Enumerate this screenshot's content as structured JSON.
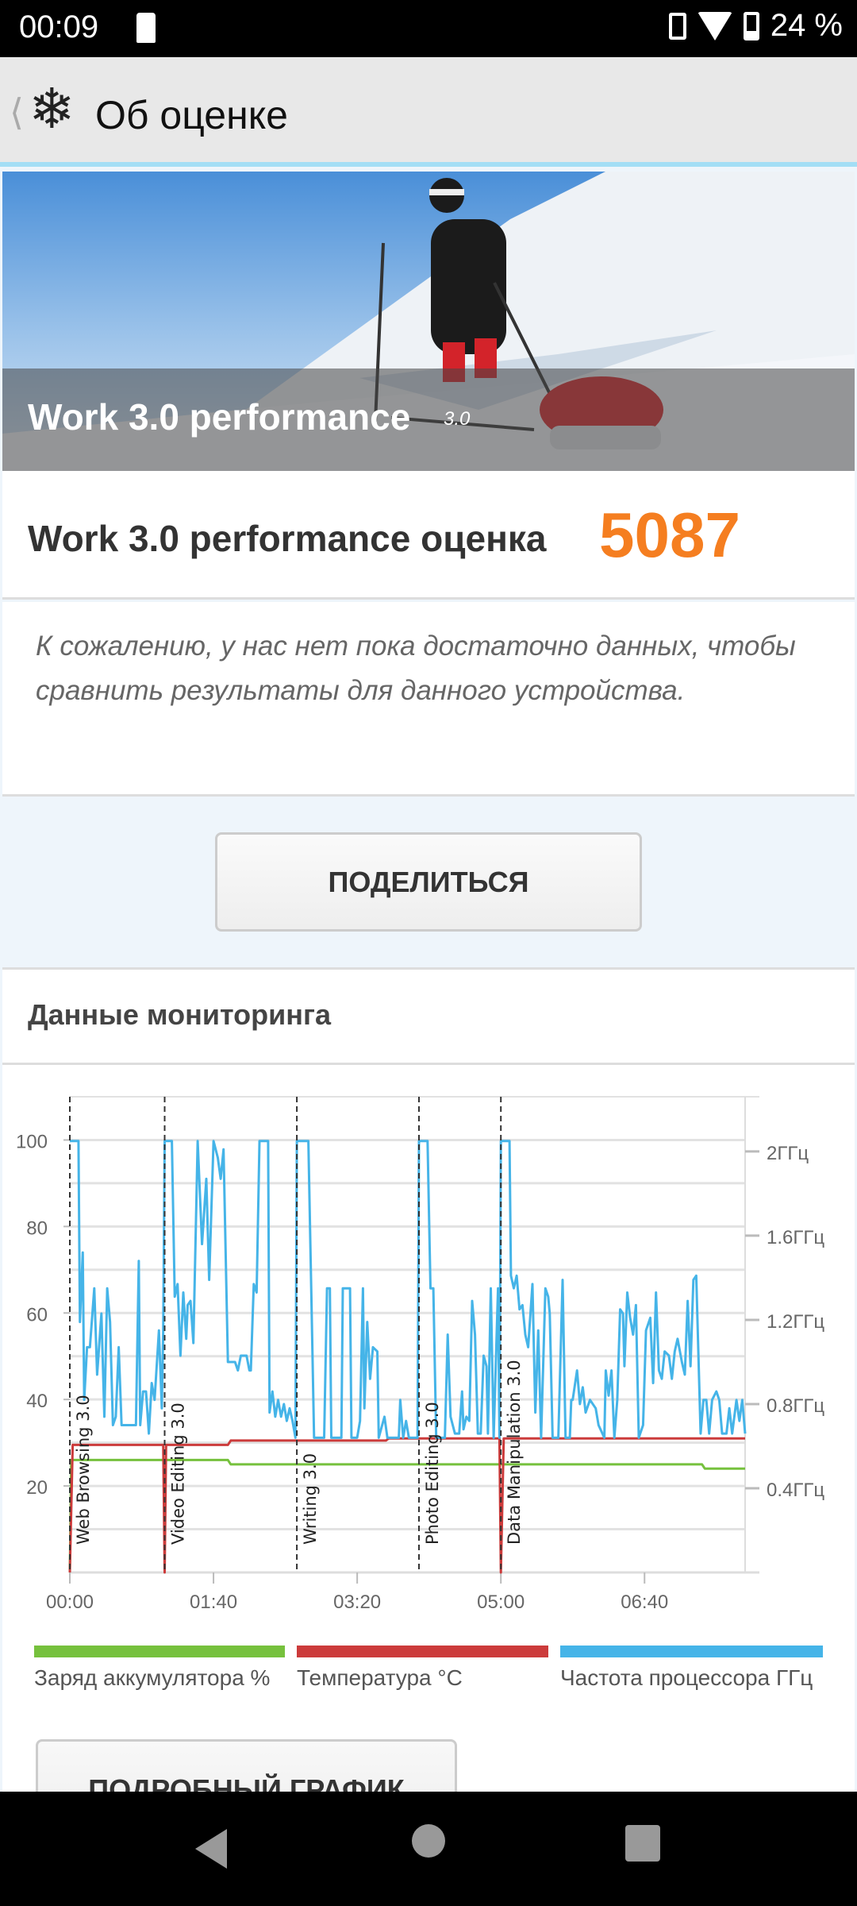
{
  "status_bar": {
    "time": "00:09",
    "battery": "24 %",
    "icons": [
      "sim-card-icon",
      "vibrate-icon",
      "wifi-icon",
      "battery-icon"
    ]
  },
  "app_bar": {
    "back_icon": "chevron-left-icon",
    "logo_icon": "snowflake-icon",
    "title": "Об оценке"
  },
  "hero": {
    "title": "Work 3.0 performance",
    "version": "3.0"
  },
  "score": {
    "label": "Work 3.0 performance оценка",
    "value": "5087",
    "color": "#f57e20"
  },
  "note": "К сожалению, у нас нет пока достаточно данных, чтобы сравнить результаты для данного устройства.",
  "share_button": "ПОДЕЛИТЬСЯ",
  "monitoring": {
    "title": "Данные мониторинга",
    "detail_button": "ПОДРОБНЫЙ ГРАФИК"
  },
  "chart_data": {
    "type": "line",
    "x_unit": "seconds",
    "xlim": [
      0,
      470
    ],
    "x_ticks": [
      {
        "value": 0,
        "label": "00:00"
      },
      {
        "value": 100,
        "label": "01:40"
      },
      {
        "value": 200,
        "label": "03:20"
      },
      {
        "value": 300,
        "label": "05:00"
      },
      {
        "value": 400,
        "label": "06:40"
      }
    ],
    "ylim_left": [
      0,
      110
    ],
    "y_ticks_left": [
      20,
      40,
      60,
      80,
      100
    ],
    "ylim_right": [
      0,
      2.26
    ],
    "y_ticks_right": [
      {
        "value": 0.4,
        "label": "0.4ГГц"
      },
      {
        "value": 0.8,
        "label": "0.8ГГц"
      },
      {
        "value": 1.2,
        "label": "1.2ГГц"
      },
      {
        "value": 1.6,
        "label": "1.6ГГц"
      },
      {
        "value": 2.0,
        "label": "2ГГц"
      }
    ],
    "grid": true,
    "legend_position": "bottom",
    "markers": [
      {
        "t": 0,
        "label": "Web Browsing 3.0"
      },
      {
        "t": 66,
        "label": "Video Editing 3.0"
      },
      {
        "t": 158,
        "label": "Writing 3.0"
      },
      {
        "t": 243,
        "label": "Photo Editing 3.0"
      },
      {
        "t": 300,
        "label": "Data Manipulation 3.0"
      }
    ],
    "series": [
      {
        "name": "Заряд аккумулятора %",
        "axis": "left",
        "color": "#76c13d",
        "points": [
          [
            0,
            0
          ],
          [
            1,
            26
          ],
          [
            110,
            26
          ],
          [
            112,
            25
          ],
          [
            440,
            25
          ],
          [
            442,
            24
          ],
          [
            470,
            24
          ]
        ]
      },
      {
        "name": "Температура °C",
        "axis": "left",
        "color": "#cc3b3b",
        "points": [
          [
            0,
            0
          ],
          [
            2,
            29.5
          ],
          [
            65,
            29.5
          ],
          [
            66,
            0
          ],
          [
            67,
            29.5
          ],
          [
            110,
            29.5
          ],
          [
            112,
            30.5
          ],
          [
            220,
            30.5
          ],
          [
            222,
            31
          ],
          [
            299,
            31
          ],
          [
            300,
            0
          ],
          [
            302,
            31
          ],
          [
            445,
            31
          ],
          [
            470,
            31
          ]
        ]
      },
      {
        "name": "Частота процессора ГГц",
        "axis": "right",
        "color": "#45b4e8",
        "points": [
          [
            0,
            2.05
          ],
          [
            6,
            2.05
          ],
          [
            7,
            1.19
          ],
          [
            9,
            1.52
          ],
          [
            10,
            0.82
          ],
          [
            12,
            1.07
          ],
          [
            14,
            1.07
          ],
          [
            17,
            1.35
          ],
          [
            19,
            0.94
          ],
          [
            22,
            1.23
          ],
          [
            24,
            0.74
          ],
          [
            26,
            1.35
          ],
          [
            28,
            1.19
          ],
          [
            30,
            0.7
          ],
          [
            32,
            0.74
          ],
          [
            34,
            1.07
          ],
          [
            36,
            0.7
          ],
          [
            46,
            0.7
          ],
          [
            48,
            1.48
          ],
          [
            49,
            0.7
          ],
          [
            51,
            0.86
          ],
          [
            53,
            0.86
          ],
          [
            55,
            0.66
          ],
          [
            57,
            0.9
          ],
          [
            59,
            0.82
          ],
          [
            62,
            1.15
          ],
          [
            64,
            0.78
          ],
          [
            65,
            1.15
          ],
          [
            66,
            2.05
          ],
          [
            71,
            2.05
          ],
          [
            73,
            1.31
          ],
          [
            75,
            1.37
          ],
          [
            77,
            1.03
          ],
          [
            79,
            1.33
          ],
          [
            81,
            1.11
          ],
          [
            82,
            1.27
          ],
          [
            84,
            1.29
          ],
          [
            86,
            1.09
          ],
          [
            89,
            2.05
          ],
          [
            92,
            1.56
          ],
          [
            95,
            1.87
          ],
          [
            97,
            1.39
          ],
          [
            100,
            2.05
          ],
          [
            103,
            1.97
          ],
          [
            105,
            1.87
          ],
          [
            107,
            2.01
          ],
          [
            110,
            1.0
          ],
          [
            115,
            1.0
          ],
          [
            117,
            0.96
          ],
          [
            119,
            1.03
          ],
          [
            123,
            1.03
          ],
          [
            125,
            0.96
          ],
          [
            126,
            0.96
          ],
          [
            128,
            1.37
          ],
          [
            130,
            1.33
          ],
          [
            132,
            2.05
          ],
          [
            138,
            2.05
          ],
          [
            139,
            0.76
          ],
          [
            141,
            0.86
          ],
          [
            143,
            0.74
          ],
          [
            145,
            0.82
          ],
          [
            147,
            0.74
          ],
          [
            149,
            0.8
          ],
          [
            151,
            0.72
          ],
          [
            153,
            0.78
          ],
          [
            155,
            0.72
          ],
          [
            157,
            0.64
          ],
          [
            158,
            2.05
          ],
          [
            166,
            2.05
          ],
          [
            168,
            1.35
          ],
          [
            170,
            0.64
          ],
          [
            177,
            0.64
          ],
          [
            179,
            1.35
          ],
          [
            181,
            1.35
          ],
          [
            182,
            0.64
          ],
          [
            189,
            0.64
          ],
          [
            190,
            1.35
          ],
          [
            195,
            1.35
          ],
          [
            196,
            0.64
          ],
          [
            200,
            0.64
          ],
          [
            202,
            0.72
          ],
          [
            204,
            1.35
          ],
          [
            205,
            0.78
          ],
          [
            207,
            1.19
          ],
          [
            209,
            0.92
          ],
          [
            211,
            1.07
          ],
          [
            214,
            1.05
          ],
          [
            215,
            0.64
          ],
          [
            219,
            0.74
          ],
          [
            221,
            0.64
          ],
          [
            229,
            0.64
          ],
          [
            230,
            0.82
          ],
          [
            232,
            0.64
          ],
          [
            234,
            0.72
          ],
          [
            236,
            0.64
          ],
          [
            242,
            0.64
          ],
          [
            243,
            2.05
          ],
          [
            249,
            2.05
          ],
          [
            251,
            1.35
          ],
          [
            253,
            1.35
          ],
          [
            255,
            0.64
          ],
          [
            261,
            0.64
          ],
          [
            263,
            1.13
          ],
          [
            265,
            0.74
          ],
          [
            268,
            0.66
          ],
          [
            271,
            0.66
          ],
          [
            273,
            0.86
          ],
          [
            274,
            0.68
          ],
          [
            276,
            0.74
          ],
          [
            278,
            0.72
          ],
          [
            280,
            1.29
          ],
          [
            282,
            1.13
          ],
          [
            284,
            0.66
          ],
          [
            286,
            0.66
          ],
          [
            288,
            1.03
          ],
          [
            290,
            0.98
          ],
          [
            291,
            0.66
          ],
          [
            293,
            1.35
          ],
          [
            295,
            0.64
          ],
          [
            298,
            1.35
          ],
          [
            299,
            0.64
          ],
          [
            300,
            2.05
          ],
          [
            306,
            2.05
          ],
          [
            307,
            1.41
          ],
          [
            309,
            1.35
          ],
          [
            311,
            1.41
          ],
          [
            313,
            1.25
          ],
          [
            315,
            1.27
          ],
          [
            317,
            1.13
          ],
          [
            319,
            1.07
          ],
          [
            322,
            1.37
          ],
          [
            324,
            0.76
          ],
          [
            326,
            1.15
          ],
          [
            328,
            0.64
          ],
          [
            331,
            1.35
          ],
          [
            333,
            1.31
          ],
          [
            334,
            1.23
          ],
          [
            336,
            0.64
          ],
          [
            340,
            0.64
          ],
          [
            343,
            1.39
          ],
          [
            345,
            0.64
          ],
          [
            348,
            0.64
          ],
          [
            349,
            0.82
          ],
          [
            350,
            0.82
          ],
          [
            353,
            0.96
          ],
          [
            355,
            0.8
          ],
          [
            357,
            0.88
          ],
          [
            359,
            0.76
          ],
          [
            362,
            0.82
          ],
          [
            366,
            0.78
          ],
          [
            368,
            0.7
          ],
          [
            372,
            0.64
          ],
          [
            373,
            0.96
          ],
          [
            375,
            0.84
          ],
          [
            377,
            0.96
          ],
          [
            379,
            0.64
          ],
          [
            381,
            0.82
          ],
          [
            383,
            1.25
          ],
          [
            385,
            1.23
          ],
          [
            386,
            0.98
          ],
          [
            388,
            1.33
          ],
          [
            390,
            1.21
          ],
          [
            392,
            1.13
          ],
          [
            394,
            1.27
          ],
          [
            396,
            0.64
          ],
          [
            399,
            0.7
          ],
          [
            401,
            1.15
          ],
          [
            404,
            1.21
          ],
          [
            406,
            0.9
          ],
          [
            408,
            1.33
          ],
          [
            410,
            0.96
          ],
          [
            412,
            0.92
          ],
          [
            414,
            1.05
          ],
          [
            417,
            1.03
          ],
          [
            419,
            0.92
          ],
          [
            421,
            1.05
          ],
          [
            423,
            1.11
          ],
          [
            426,
            1.0
          ],
          [
            428,
            0.94
          ],
          [
            430,
            1.29
          ],
          [
            432,
            0.98
          ],
          [
            434,
            1.39
          ],
          [
            436,
            1.41
          ],
          [
            439,
            0.66
          ],
          [
            441,
            0.82
          ],
          [
            443,
            0.82
          ],
          [
            445,
            0.66
          ],
          [
            447,
            0.82
          ],
          [
            450,
            0.86
          ],
          [
            452,
            0.82
          ],
          [
            454,
            0.66
          ],
          [
            457,
            0.66
          ],
          [
            459,
            0.78
          ],
          [
            461,
            0.66
          ],
          [
            464,
            0.82
          ],
          [
            466,
            0.72
          ],
          [
            468,
            0.82
          ],
          [
            470,
            0.66
          ]
        ]
      }
    ]
  },
  "nav_bar": {
    "icons": [
      "back-triangle-icon",
      "home-circle-icon",
      "recents-square-icon"
    ]
  }
}
